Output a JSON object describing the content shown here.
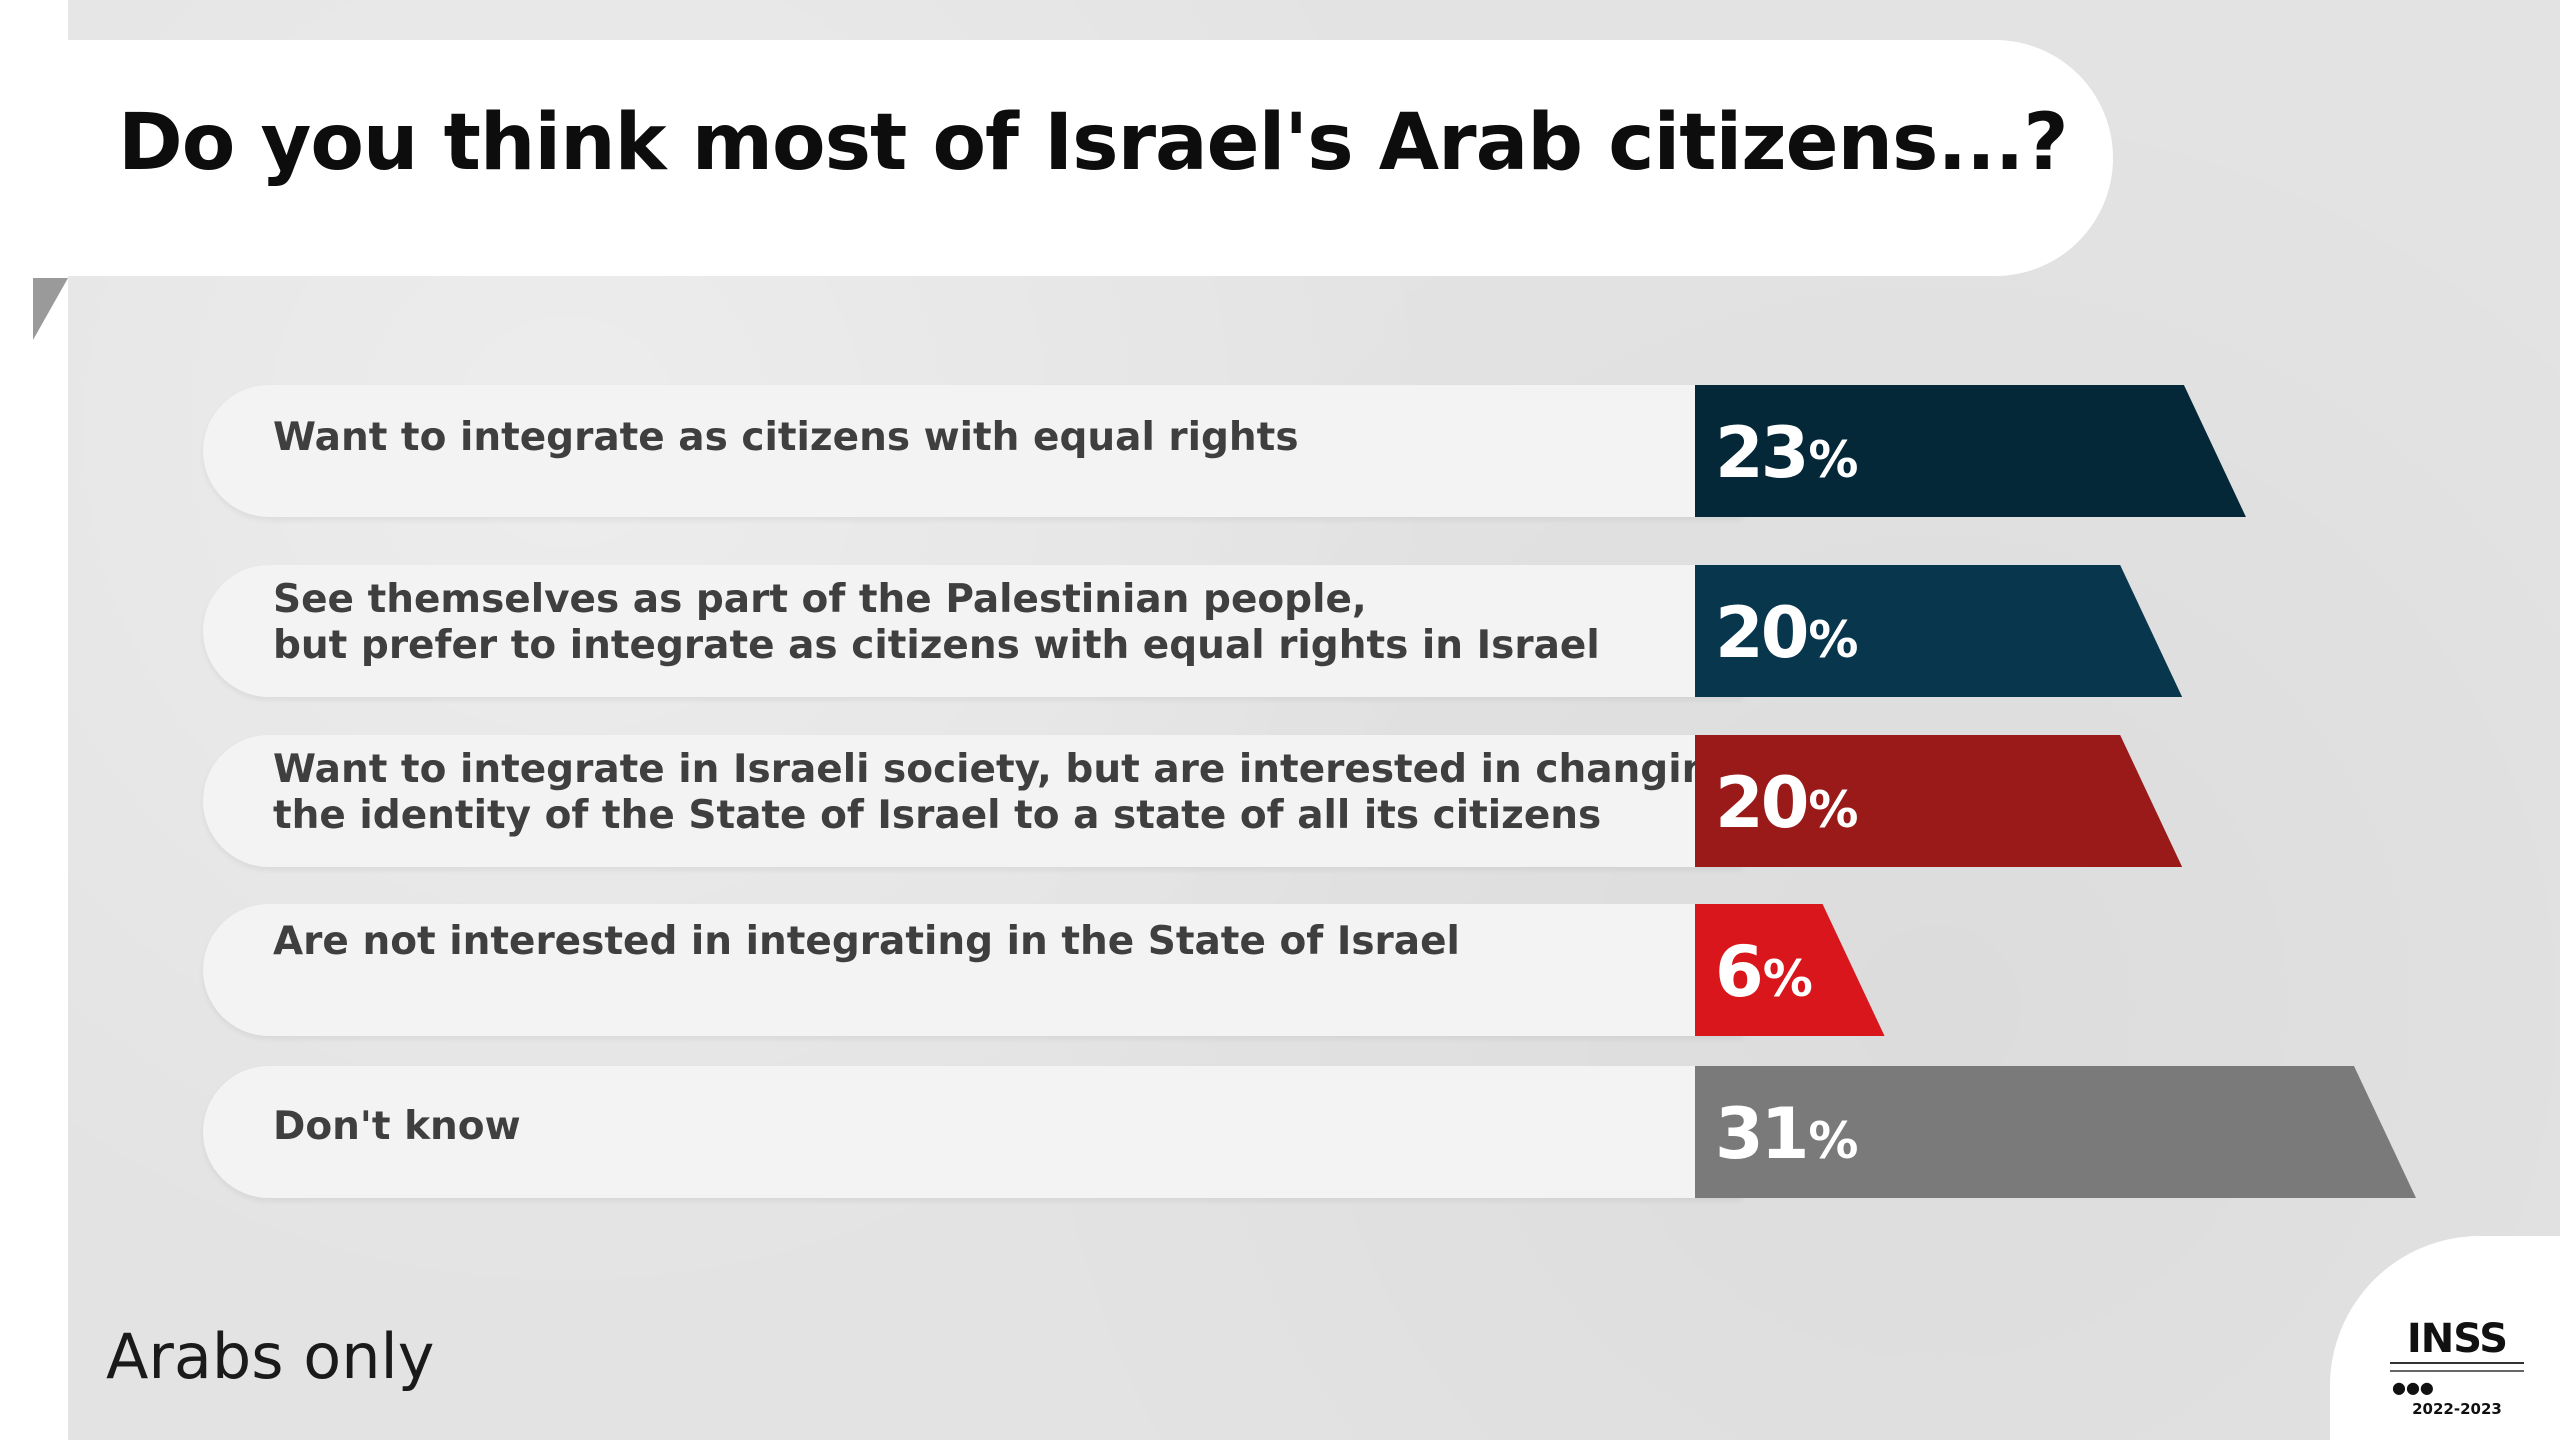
{
  "title": "Do you think most of Israel's Arab citizens...?",
  "footnote": "Arabs only",
  "logo": {
    "name": "INSS",
    "years": "2022-2023"
  },
  "chart_data": {
    "type": "bar",
    "orientation": "horizontal",
    "title": "Do you think most of Israel's Arab citizens...?",
    "unit": "%",
    "categories": [
      [
        "Want to integrate as citizens  with equal rights"
      ],
      [
        "See themselves as part of the Palestinian people,",
        "but prefer to integrate as citizens with equal rights in Israel"
      ],
      [
        "Want to integrate in Israeli society, but are interested in changing",
        "the identity of the State of Israel to a state of all its citizens"
      ],
      [
        "Are not interested in integrating in the State of Israel"
      ],
      [
        "Don't know"
      ]
    ],
    "values": [
      23,
      20,
      20,
      6,
      31
    ],
    "value_labels": [
      "23",
      "20",
      "20",
      "6",
      "31"
    ],
    "colors": [
      "#052838",
      "#08364d",
      "#9a1919",
      "#d8161b",
      "#7a7a7a"
    ],
    "xlim": [
      0,
      31
    ]
  }
}
